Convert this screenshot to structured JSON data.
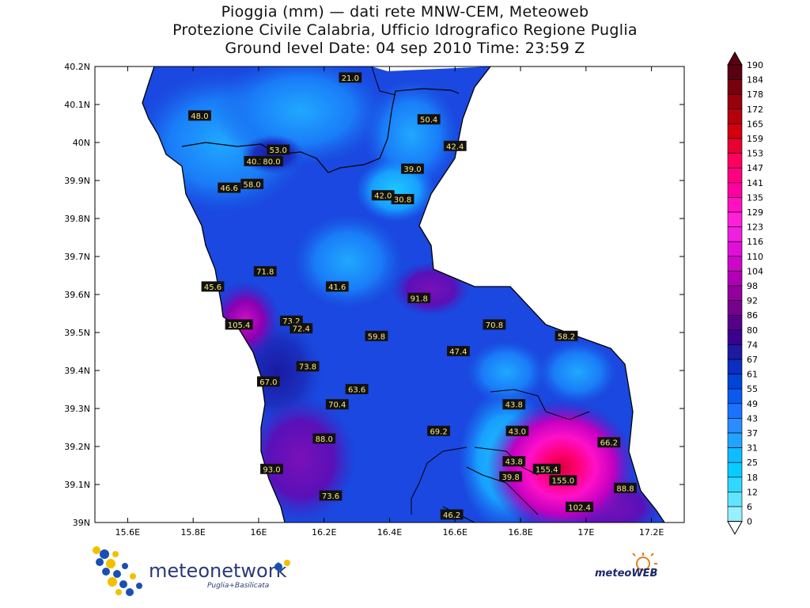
{
  "title": {
    "line1": "Pioggia (mm) — dati rete MNW-CEM, Meteoweb",
    "line2": "Protezione Civile Calabria, Ufficio Idrografico Regione Puglia",
    "line3": "Ground level     Date: 04 sep 2010    Time: 23:59 Z"
  },
  "map": {
    "lat_ticks": [
      "40.2N",
      "40.1N",
      "40N",
      "39.9N",
      "39.8N",
      "39.7N",
      "39.6N",
      "39.5N",
      "39.4N",
      "39.3N",
      "39.2N",
      "39.1N",
      "39N"
    ],
    "lon_ticks": [
      "15.6E",
      "15.8E",
      "16E",
      "16.2E",
      "16.4E",
      "16.6E",
      "16.8E",
      "17E",
      "17.2E"
    ],
    "lon_range": [
      15.5,
      17.3
    ],
    "lat_range": [
      39.0,
      40.2
    ]
  },
  "stations": [
    {
      "value": "21.0",
      "lon": 16.28,
      "lat": 40.17
    },
    {
      "value": "48.0",
      "lon": 15.82,
      "lat": 40.07
    },
    {
      "value": "50.4",
      "lon": 16.52,
      "lat": 40.06
    },
    {
      "value": "42.4",
      "lon": 16.6,
      "lat": 39.99
    },
    {
      "value": "53.0",
      "lon": 16.06,
      "lat": 39.98
    },
    {
      "value": "40.2",
      "lon": 15.99,
      "lat": 39.95
    },
    {
      "value": "80.0",
      "lon": 16.04,
      "lat": 39.95
    },
    {
      "value": "39.0",
      "lon": 16.47,
      "lat": 39.93
    },
    {
      "value": "58.0",
      "lon": 15.98,
      "lat": 39.89
    },
    {
      "value": "46.6",
      "lon": 15.91,
      "lat": 39.88
    },
    {
      "value": "42.0",
      "lon": 16.38,
      "lat": 39.86
    },
    {
      "value": "30.8",
      "lon": 16.44,
      "lat": 39.85
    },
    {
      "value": "71.8",
      "lon": 16.02,
      "lat": 39.66
    },
    {
      "value": "45.6",
      "lon": 15.86,
      "lat": 39.62
    },
    {
      "value": "41.6",
      "lon": 16.24,
      "lat": 39.62
    },
    {
      "value": "91.8",
      "lon": 16.49,
      "lat": 39.59
    },
    {
      "value": "73.2",
      "lon": 16.1,
      "lat": 39.53
    },
    {
      "value": "105.4",
      "lon": 15.94,
      "lat": 39.52
    },
    {
      "value": "72.4",
      "lon": 16.13,
      "lat": 39.51
    },
    {
      "value": "70.8",
      "lon": 16.72,
      "lat": 39.52
    },
    {
      "value": "59.8",
      "lon": 16.36,
      "lat": 39.49
    },
    {
      "value": "58.2",
      "lon": 16.94,
      "lat": 39.49
    },
    {
      "value": "47.4",
      "lon": 16.61,
      "lat": 39.45
    },
    {
      "value": "73.8",
      "lon": 16.15,
      "lat": 39.41
    },
    {
      "value": "67.0",
      "lon": 16.03,
      "lat": 39.37
    },
    {
      "value": "63.6",
      "lon": 16.3,
      "lat": 39.35
    },
    {
      "value": "70.4",
      "lon": 16.24,
      "lat": 39.31
    },
    {
      "value": "43.8",
      "lon": 16.78,
      "lat": 39.31
    },
    {
      "value": "69.2",
      "lon": 16.55,
      "lat": 39.24
    },
    {
      "value": "43.0",
      "lon": 16.79,
      "lat": 39.24
    },
    {
      "value": "88.0",
      "lon": 16.2,
      "lat": 39.22
    },
    {
      "value": "66.2",
      "lon": 17.07,
      "lat": 39.21
    },
    {
      "value": "43.8",
      "lon": 16.78,
      "lat": 39.16
    },
    {
      "value": "155.4",
      "lon": 16.88,
      "lat": 39.14
    },
    {
      "value": "93.0",
      "lon": 16.04,
      "lat": 39.14
    },
    {
      "value": "39.8",
      "lon": 16.77,
      "lat": 39.12
    },
    {
      "value": "155.0",
      "lon": 16.93,
      "lat": 39.11
    },
    {
      "value": "88.8",
      "lon": 17.12,
      "lat": 39.09
    },
    {
      "value": "73.6",
      "lon": 16.22,
      "lat": 39.07
    },
    {
      "value": "102.4",
      "lon": 16.98,
      "lat": 39.04
    },
    {
      "value": "46.2",
      "lon": 16.59,
      "lat": 39.02
    }
  ],
  "colorbar": {
    "labels": [
      "190",
      "184",
      "178",
      "172",
      "165",
      "159",
      "153",
      "147",
      "141",
      "135",
      "129",
      "123",
      "116",
      "110",
      "104",
      "98",
      "92",
      "86",
      "80",
      "74",
      "67",
      "61",
      "55",
      "49",
      "43",
      "37",
      "31",
      "25",
      "18",
      "12",
      "6",
      "0"
    ],
    "colors": [
      "#5a0010",
      "#7a0010",
      "#98000e",
      "#b6000e",
      "#d2000e",
      "#ea0030",
      "#ff0060",
      "#ff0080",
      "#ff00a0",
      "#ff10c0",
      "#ff20d8",
      "#f020e0",
      "#e010d8",
      "#cc08c8",
      "#b000b4",
      "#92009e",
      "#78008e",
      "#560088",
      "#3a0090",
      "#1c1aa0",
      "#0a2ec0",
      "#0044d8",
      "#0a5af0",
      "#1a72ff",
      "#2a8cff",
      "#20a4ff",
      "#10bcff",
      "#08ccff",
      "#30d8ff",
      "#60e4ff",
      "#96f0ff"
    ]
  },
  "logos": {
    "left_name": "meteonetwork",
    "left_sub": "Puglia+Basilicata",
    "right_name": "meteoWEB"
  }
}
